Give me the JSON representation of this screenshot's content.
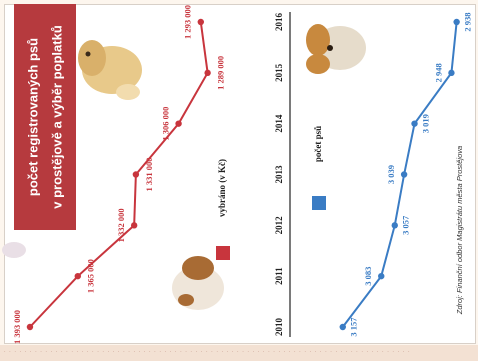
{
  "chart_data": {
    "type": "line",
    "title_line1": "počet registrovaných psů",
    "title_line2": "v prostějově a výběr poplatků",
    "x": [
      "2010",
      "2011",
      "2012",
      "2013",
      "2014",
      "2015",
      "2016"
    ],
    "series": [
      {
        "name": "vybráno (v Kč)",
        "color": "#c8353d",
        "values": [
          1393000,
          1365000,
          1332000,
          1331000,
          1306000,
          1289000,
          1293000
        ],
        "labels": [
          "1 393 000",
          "1 365 000",
          "1 332 000",
          "1 331 000",
          "1 306 000",
          "1 289 000",
          "1 293 000"
        ]
      },
      {
        "name": "počet psů",
        "color": "#3a7cc4",
        "values": [
          3157,
          3083,
          3057,
          3039,
          3019,
          2948,
          2938
        ],
        "labels": [
          "3 157",
          "3 083",
          "3 057",
          "3 039",
          "3 019",
          "2 948",
          "2 938"
        ]
      }
    ],
    "source": "Zdroj: Finanční odbor Magistrátu města Prostějova"
  },
  "bottom_strip": "· · · · · · · · · · · · · · · · · · · · · · · · · · · · · · · · · · · · · · · · · · · · · · · · · · · · · · · · · · · · · · · · · · · · · · · · · · · · · · ·"
}
